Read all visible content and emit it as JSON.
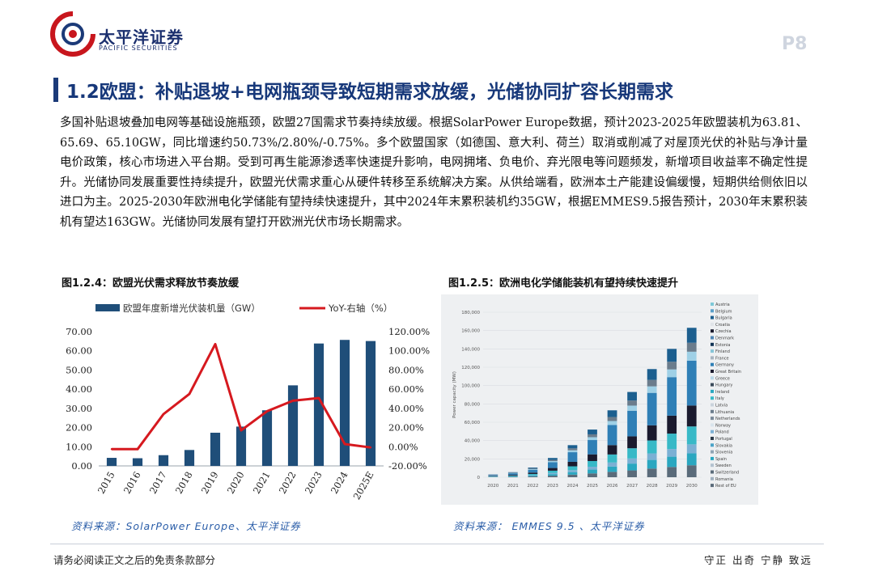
{
  "header": {
    "brand_cn": "太平洋证券",
    "brand_en": "PACIFIC SECURITIES",
    "page_number": "P8",
    "brand_color": "#c8161d",
    "navy": "#1b3a78"
  },
  "section": {
    "title": "1.2欧盟：补贴退坡+电网瓶颈导致短期需求放缓，光储协同扩容长期需求"
  },
  "body": {
    "paragraph": "多国补贴退坡叠加电网等基础设施瓶颈，欧盟27国需求节奏持续放缓。根据SolarPower Europe数据，预计2023-2025年欧盟装机为63.81、65.69、65.10GW，同比增速约50.73%/2.80%/-0.75%。多个欧盟国家（如德国、意大利、荷兰）取消或削减了对屋顶光伏的补贴与净计量电价政策，核心市场进入平台期。受到可再生能源渗透率快速提升影响，电网拥堵、负电价、弃光限电等问题频发，新增项目收益率不确定性提升。光储协同发展重要性持续提升，欧盟光伏需求重心从硬件转移至系统解决方案。从供给端看，欧洲本土产能建设偏缓慢，短期供给侧依旧以进口为主。2025-2030年欧洲电化学储能有望持续快速提升，其中2024年末累积装机约35GW，根据EMMES9.5报告预计，2030年末累积装机有望达163GW。光储协同发展有望打开欧洲光伏市场长期需求。"
  },
  "figures": {
    "fig1_caption": "图1.2.4：欧盟光伏需求释放节奏放缓",
    "fig1_source": "资料来源：SolarPower Europe、太平洋证券",
    "fig2_caption": "图1.2.5：欧洲电化学储能装机有望持续快速提升",
    "fig2_source": "资料来源： EMMES 9.5 、太平洋证券"
  },
  "footer": {
    "left": "请务必阅读正文之后的免责条款部分",
    "right": "守正 出奇 宁静 致远"
  },
  "chart_data": [
    {
      "type": "bar",
      "title": "",
      "categories": [
        "2015",
        "2016",
        "2017",
        "2018",
        "2019",
        "2020",
        "2021",
        "2022",
        "2023",
        "2024",
        "2025E"
      ],
      "series": [
        {
          "name": "欧盟年度新增光伏装机量（GW）",
          "kind": "bar",
          "axis": "left",
          "color": "#1f4e79",
          "values": [
            4.2,
            4.0,
            5.6,
            8.3,
            17.3,
            20.5,
            29.0,
            42.0,
            63.81,
            65.69,
            65.1
          ]
        },
        {
          "name": "YoY-右轴（%）",
          "kind": "line",
          "axis": "right",
          "color": "#d6191f",
          "values": [
            -2.5,
            -2.5,
            34.0,
            55.0,
            107.0,
            17.0,
            37.0,
            48.0,
            50.73,
            2.8,
            -0.75
          ]
        }
      ],
      "y_left": {
        "min": 0,
        "max": 70,
        "ticks": [
          "0.00",
          "10.00",
          "20.00",
          "30.00",
          "40.00",
          "50.00",
          "60.00",
          "70.00"
        ]
      },
      "y_right": {
        "min": -20,
        "max": 120,
        "ticks": [
          "-20.00%",
          "0.00%",
          "20.00%",
          "40.00%",
          "60.00%",
          "80.00%",
          "100.00%",
          "120.00%"
        ]
      },
      "legend_position": "top"
    },
    {
      "type": "bar",
      "stacked": true,
      "ylabel": "Power capacity (MW)",
      "categories": [
        "2020",
        "2021",
        "2022",
        "2023",
        "2024",
        "2025",
        "2026",
        "2027",
        "2028",
        "2029",
        "2030"
      ],
      "y": {
        "min": 0,
        "max": 180000,
        "ticks": [
          "0",
          "20,000",
          "40,000",
          "60,000",
          "80,000",
          "100,000",
          "120,000",
          "140,000",
          "160,000",
          "180,000"
        ]
      },
      "totals": [
        3000,
        5500,
        10500,
        21000,
        35000,
        52000,
        73000,
        93000,
        118000,
        140000,
        163000
      ],
      "legend": [
        "Austria",
        "Belgium",
        "Bulgaria",
        "Croatia",
        "Czechia",
        "Denmark",
        "Estonia",
        "Finland",
        "France",
        "Germany",
        "Great Britain",
        "Greece",
        "Hungary",
        "Ireland",
        "Italy",
        "Latvia",
        "Lithuania",
        "Netherlands",
        "Norway",
        "Poland",
        "Portugal",
        "Slovakia",
        "Slovenia",
        "Spain",
        "Sweden",
        "Switzerland",
        "Romania",
        "Rest of EU"
      ],
      "segments": [
        {
          "name": "Rest of EU",
          "color": "#5a6b7a",
          "share": 0.08
        },
        {
          "name": "Spain",
          "color": "#2aa7c0",
          "share": 0.08
        },
        {
          "name": "Poland",
          "color": "#7bb0d4",
          "share": 0.06
        },
        {
          "name": "Italy",
          "color": "#38b9c7",
          "share": 0.12
        },
        {
          "name": "Great Britain",
          "color": "#1a1a2e",
          "share": 0.14
        },
        {
          "name": "Germany",
          "color": "#2f7fb6",
          "share": 0.3
        },
        {
          "name": "France",
          "color": "#9fd0e6",
          "share": 0.06
        },
        {
          "name": "Netherlands",
          "color": "#6b7c8c",
          "share": 0.06
        },
        {
          "name": "Austria",
          "color": "#1c5f8f",
          "share": 0.1
        }
      ]
    }
  ]
}
